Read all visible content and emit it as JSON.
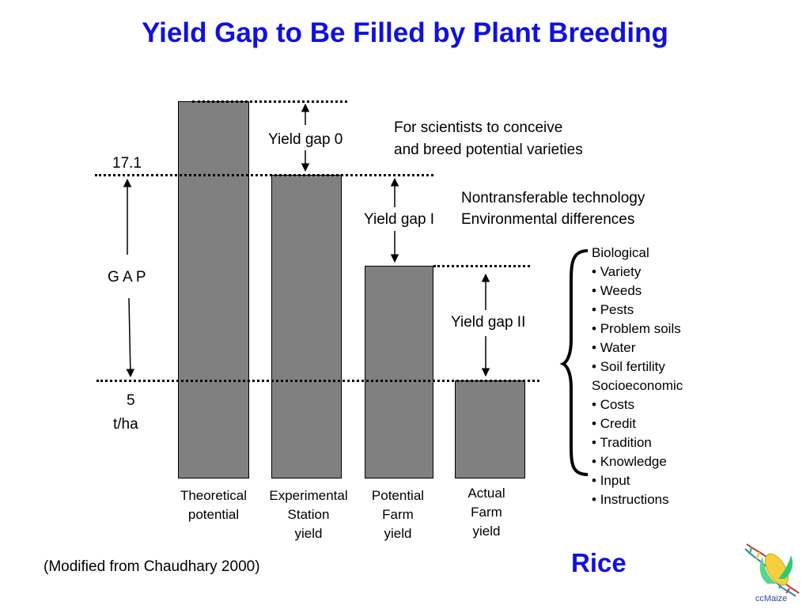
{
  "title": "Yield Gap to Be Filled by Plant Breeding",
  "bars": [
    {
      "label": [
        "Theoretical",
        "potential"
      ]
    },
    {
      "label": [
        "Experimental",
        "Station",
        "yield"
      ]
    },
    {
      "label": [
        "Potential",
        "Farm",
        "yield"
      ]
    },
    {
      "label": [
        "Actual",
        "Farm",
        "yield"
      ]
    }
  ],
  "axis": {
    "top_value": "17.1",
    "gap_label": "G A P",
    "bottom_value": "5",
    "unit": "t/ha"
  },
  "gaps": {
    "gap0": "Yield gap 0",
    "gap1": "Yield gap I",
    "gap2": "Yield gap II"
  },
  "notes": {
    "gap0_note": [
      "For scientists to conceive",
      "and breed potential varieties"
    ],
    "gap1_note": [
      "Nontransferable technology",
      "Environmental differences"
    ]
  },
  "constraints": {
    "groups": [
      {
        "name": "Biological",
        "items": [
          "Variety",
          "Weeds",
          "Pests",
          "Problem soils",
          "Water",
          "Soil fertility"
        ]
      },
      {
        "name": "Socioeconomic",
        "items": [
          "Costs",
          "Credit",
          "Tradition",
          "Knowledge",
          "Input",
          "Instructions"
        ]
      }
    ]
  },
  "source": "(Modified from Chaudhary 2000)",
  "crop": "Rice",
  "logo": {
    "text": "ccMaize"
  },
  "colors": {
    "title": "#1010e0",
    "bar": "#808080",
    "logo_text": "#2a4a9a"
  }
}
